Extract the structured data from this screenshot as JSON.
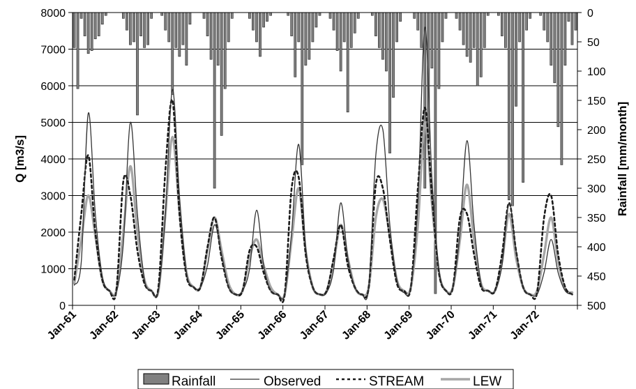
{
  "chart_data": {
    "type": "line",
    "title": "",
    "x_tick_labels": [
      "Jan-61",
      "Jan-62",
      "Jan-63",
      "Jan-64",
      "Jan-65",
      "Jan-66",
      "Jan-67",
      "Jan-68",
      "Jan-69",
      "Jan-70",
      "Jan-71",
      "Jan-72"
    ],
    "left_axis": {
      "label": "Q [m3/s]",
      "min": 0,
      "max": 8000,
      "step": 1000
    },
    "right_axis": {
      "label": "Rainfall [mm/month]",
      "min": 0,
      "max": 500,
      "step": 50,
      "reversed": true
    },
    "grid": "horizontal",
    "legend_position": "bottom",
    "rainfall": {
      "name": "Rainfall",
      "type": "bar",
      "axis": "right",
      "color": "#808080",
      "start": "Jan-61",
      "interval": "month",
      "values": [
        60,
        130,
        10,
        40,
        70,
        65,
        45,
        40,
        20,
        5,
        0,
        0,
        0,
        0,
        10,
        30,
        55,
        50,
        175,
        40,
        60,
        55,
        10,
        0,
        0,
        5,
        30,
        50,
        140,
        60,
        75,
        55,
        90,
        20,
        0,
        0,
        0,
        10,
        40,
        80,
        300,
        90,
        210,
        130,
        50,
        10,
        0,
        0,
        0,
        0,
        10,
        30,
        50,
        75,
        25,
        15,
        5,
        0,
        0,
        0,
        0,
        5,
        40,
        110,
        50,
        260,
        90,
        80,
        50,
        25,
        5,
        0,
        0,
        10,
        30,
        65,
        100,
        50,
        170,
        60,
        35,
        10,
        0,
        0,
        0,
        5,
        40,
        60,
        80,
        100,
        240,
        145,
        50,
        15,
        0,
        0,
        0,
        10,
        30,
        60,
        300,
        220,
        95,
        480,
        130,
        50,
        10,
        0,
        0,
        10,
        30,
        55,
        75,
        85,
        60,
        125,
        110,
        60,
        5,
        0,
        0,
        5,
        40,
        60,
        320,
        330,
        160,
        50,
        290,
        30,
        10,
        0,
        0,
        5,
        30,
        50,
        90,
        120,
        195,
        260,
        90,
        15,
        55,
        30
      ]
    },
    "series": [
      {
        "name": "Observed",
        "axis": "left",
        "style": "solid-thin",
        "color": "#333333",
        "start": "Jan-61",
        "interval_months": 2,
        "values": [
          550,
          1200,
          5250,
          2500,
          800,
          400,
          350,
          1700,
          5000,
          2500,
          700,
          400,
          400,
          2500,
          5900,
          3000,
          900,
          500,
          500,
          1100,
          2200,
          1400,
          500,
          300,
          400,
          1000,
          2600,
          1100,
          400,
          300,
          300,
          2000,
          4400,
          1600,
          500,
          300,
          350,
          1000,
          2800,
          1300,
          500,
          300,
          500,
          4100,
          4800,
          2200,
          700,
          350,
          500,
          2800,
          7600,
          3500,
          1000,
          400,
          500,
          2000,
          4500,
          2200,
          600,
          400,
          400,
          1100,
          2800,
          1500,
          500,
          300,
          300,
          900,
          1800,
          900,
          400,
          300
        ]
      },
      {
        "name": "STREAM",
        "axis": "left",
        "style": "dashed",
        "color": "#1a1a1a",
        "start": "Jan-61",
        "interval_months": 2,
        "values": [
          700,
          2500,
          4100,
          2000,
          700,
          400,
          400,
          3400,
          3000,
          1500,
          600,
          400,
          500,
          3700,
          5600,
          2500,
          800,
          500,
          500,
          1600,
          2400,
          1300,
          500,
          300,
          400,
          1500,
          1600,
          900,
          400,
          300,
          300,
          3200,
          3500,
          1400,
          500,
          300,
          400,
          1300,
          2200,
          1100,
          500,
          300,
          500,
          3300,
          3200,
          1800,
          600,
          400,
          500,
          3200,
          5400,
          3000,
          900,
          400,
          500,
          2400,
          2500,
          1400,
          500,
          400,
          400,
          1400,
          2800,
          1500,
          500,
          300,
          350,
          2400,
          3000,
          1400,
          500,
          300
        ]
      },
      {
        "name": "LEW",
        "axis": "left",
        "style": "solid-thick",
        "color": "#a6a6a6",
        "start": "Jan-61",
        "interval_months": 2,
        "values": [
          600,
          1800,
          3000,
          1900,
          700,
          400,
          400,
          2000,
          3800,
          2000,
          700,
          400,
          400,
          2500,
          4600,
          2600,
          900,
          500,
          500,
          1500,
          2400,
          1500,
          600,
          300,
          400,
          1300,
          1800,
          1100,
          500,
          300,
          300,
          1800,
          3200,
          1500,
          500,
          300,
          400,
          1200,
          2200,
          1300,
          500,
          300,
          500,
          2400,
          2900,
          1900,
          700,
          400,
          500,
          2200,
          5000,
          2800,
          900,
          400,
          500,
          1800,
          3300,
          1800,
          600,
          400,
          400,
          1200,
          2500,
          1300,
          500,
          300,
          400,
          1400,
          2400,
          1200,
          450,
          350
        ]
      }
    ],
    "legend": [
      "Rainfall",
      "Observed",
      "STREAM",
      "LEW"
    ]
  }
}
